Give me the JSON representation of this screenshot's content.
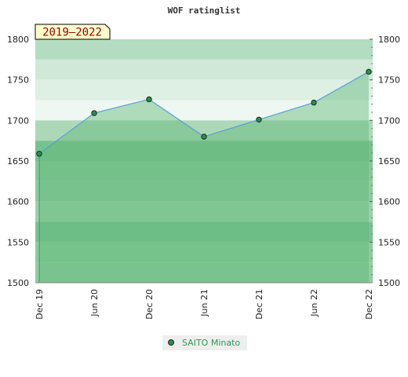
{
  "chart_data": {
    "type": "area",
    "title": "WOF ratinglist",
    "period_label": "2019–2022",
    "x": [
      "Dec 19",
      "Jun 20",
      "Dec 20",
      "Jun 21",
      "Dec 21",
      "Jun 22",
      "Dec 22"
    ],
    "series": [
      {
        "name": "SAITO Minato",
        "values": [
          1659,
          1709,
          1726,
          1680,
          1701,
          1722,
          1760
        ]
      }
    ],
    "ylim": [
      1500,
      1800
    ],
    "yticks": [
      1500,
      1550,
      1600,
      1650,
      1700,
      1750,
      1800
    ],
    "grid": true,
    "legend": "bottom-center",
    "colors": {
      "line": "#5aa0d8",
      "area": "#5fb878",
      "marker": "#2e8b57",
      "legend_text": "#2e9a52",
      "period_bg": "#ffffcc",
      "period_text": "#990000"
    }
  }
}
